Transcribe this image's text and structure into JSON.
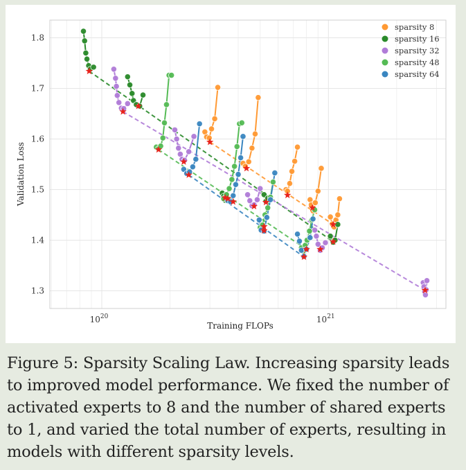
{
  "chart_data": {
    "type": "scatter",
    "xlabel": "Training FLOPs",
    "ylabel": "Validation Loss",
    "xscale": "log",
    "xlim": [
      5.9e+19,
      3.3e+21
    ],
    "ylim": [
      1.265,
      1.835
    ],
    "x_ticks": [
      {
        "value": 1e+20,
        "base": "10",
        "exp": "20"
      },
      {
        "value": 1e+21,
        "base": "10",
        "exp": "21"
      }
    ],
    "y_ticks": [
      {
        "value": 1.3,
        "label": "1.3"
      },
      {
        "value": 1.4,
        "label": "1.4"
      },
      {
        "value": 1.5,
        "label": "1.5"
      },
      {
        "value": 1.6,
        "label": "1.6"
      },
      {
        "value": 1.7,
        "label": "1.7"
      },
      {
        "value": 1.8,
        "label": "1.8"
      }
    ],
    "grid": true,
    "legend_position": "top-right",
    "series": [
      {
        "name": "sparsity 8",
        "color": "#ff9933",
        "groups": [
          {
            "x": [
              2.85e+20,
              2.9e+20,
              2.98e+20,
              3.05e+20,
              3.15e+20,
              3.25e+20
            ],
            "y": [
              1.614,
              1.604,
              1.602,
              1.62,
              1.64,
              1.702
            ]
          },
          {
            "x": [
              4.2e+20,
              4.3e+20,
              4.45e+20,
              4.6e+20,
              4.75e+20,
              4.9e+20
            ],
            "y": [
              1.552,
              1.546,
              1.555,
              1.582,
              1.61,
              1.682
            ]
          },
          {
            "x": [
              6.5e+20,
              6.6e+20,
              6.75e+20,
              6.9e+20,
              7.1e+20,
              7.3e+20
            ],
            "y": [
              1.5,
              1.497,
              1.512,
              1.536,
              1.556,
              1.584
            ]
          },
          {
            "x": [
              8.3e+20,
              8.4e+20,
              8.55e+20,
              8.75e+20,
              9e+20,
              9.3e+20
            ],
            "y": [
              1.48,
              1.47,
              1.458,
              1.474,
              1.497,
              1.542
            ]
          },
          {
            "x": [
              1.02e+21,
              1.04e+21,
              1.06e+21,
              1.08e+21,
              1.1e+21,
              1.12e+21
            ],
            "y": [
              1.446,
              1.432,
              1.426,
              1.44,
              1.45,
              1.482
            ]
          }
        ],
        "optima": [
          [
            3e+20,
            1.594
          ],
          [
            4.35e+20,
            1.542
          ],
          [
            6.6e+20,
            1.489
          ],
          [
            8.5e+20,
            1.464
          ],
          [
            1.05e+21,
            1.431
          ]
        ]
      },
      {
        "name": "sparsity 16",
        "color": "#2a8a2a",
        "groups": [
          {
            "x": [
              8.3e+19,
              8.4e+19,
              8.5e+19,
              8.6e+19,
              8.75e+19,
              8.9e+19,
              9.2e+19
            ],
            "y": [
              1.813,
              1.794,
              1.77,
              1.758,
              1.745,
              1.738,
              1.742
            ]
          },
          {
            "x": [
              1.3e+20,
              1.33e+20,
              1.36e+20,
              1.38e+20,
              1.42e+20,
              1.47e+20,
              1.52e+20
            ],
            "y": [
              1.723,
              1.707,
              1.69,
              1.676,
              1.668,
              1.665,
              1.687
            ]
          },
          {
            "x": [
              3.4e+20,
              3.45e+20,
              3.5e+20,
              3.55e+20
            ],
            "y": [
              1.493,
              1.487,
              1.479,
              1.49
            ]
          },
          {
            "x": [
              5.2e+20,
              5.3e+20,
              5.4e+20
            ],
            "y": [
              1.49,
              1.477,
              1.483
            ]
          },
          {
            "x": [
              1.02e+21,
              1.05e+21,
              1.07e+21,
              1.1e+21
            ],
            "y": [
              1.408,
              1.396,
              1.4,
              1.431
            ]
          }
        ],
        "optima": [
          [
            8.8e+19,
            1.734
          ],
          [
            1.45e+20,
            1.665
          ],
          [
            3.5e+20,
            1.484
          ],
          [
            5.3e+20,
            1.475
          ],
          [
            1.05e+21,
            1.397
          ]
        ]
      },
      {
        "name": "sparsity 32",
        "color": "#b07cd8",
        "groups": [
          {
            "x": [
              1.13e+20,
              1.15e+20,
              1.16e+20,
              1.17e+20,
              1.19e+20,
              1.22e+20,
              1.25e+20,
              1.3e+20
            ],
            "y": [
              1.738,
              1.72,
              1.704,
              1.686,
              1.672,
              1.661,
              1.66,
              1.67
            ]
          },
          {
            "x": [
              2.1e+20,
              2.14e+20,
              2.18e+20,
              2.22e+20,
              2.26e+20,
              2.32e+20,
              2.42e+20,
              2.55e+20
            ],
            "y": [
              1.618,
              1.6,
              1.582,
              1.57,
              1.56,
              1.558,
              1.575,
              1.605
            ]
          },
          {
            "x": [
              4.4e+20,
              4.5e+20,
              4.6e+20,
              4.7e+20,
              4.85e+20,
              5e+20
            ],
            "y": [
              1.49,
              1.478,
              1.468,
              1.47,
              1.48,
              1.502
            ]
          },
          {
            "x": [
              8.7e+20,
              8.85e+20,
              9e+20,
              9.2e+20,
              9.4e+20,
              9.7e+20
            ],
            "y": [
              1.42,
              1.408,
              1.392,
              1.38,
              1.385,
              1.395
            ]
          },
          {
            "x": [
              2.62e+21,
              2.64e+21,
              2.66e+21,
              2.68e+21,
              2.7e+21,
              2.72e+21
            ],
            "y": [
              1.316,
              1.308,
              1.298,
              1.292,
              1.302,
              1.32
            ]
          }
        ],
        "optima": [
          [
            1.24e+20,
            1.654
          ],
          [
            2.3e+20,
            1.555
          ],
          [
            4.7e+20,
            1.467
          ],
          [
            9.2e+20,
            1.382
          ],
          [
            2.67e+21,
            1.301
          ]
        ]
      },
      {
        "name": "sparsity 48",
        "color": "#55bb55",
        "groups": [
          {
            "x": [
              1.74e+20,
              1.78e+20,
              1.82e+20,
              1.86e+20,
              1.89e+20,
              1.93e+20,
              1.98e+20,
              2.03e+20
            ],
            "y": [
              1.584,
              1.581,
              1.586,
              1.602,
              1.632,
              1.668,
              1.726,
              1.726
            ]
          },
          {
            "x": [
              3.45e+20,
              3.55e+20,
              3.65e+20,
              3.75e+20,
              3.85e+20,
              3.95e+20,
              4.05e+20,
              4.15e+20
            ],
            "y": [
              1.482,
              1.49,
              1.502,
              1.52,
              1.546,
              1.585,
              1.63,
              1.632
            ]
          },
          {
            "x": [
              5e+20,
              5.12e+20,
              5.25e+20,
              5.4e+20,
              5.55e+20,
              5.7e+20
            ],
            "y": [
              1.425,
              1.43,
              1.45,
              1.464,
              1.485,
              1.515
            ]
          },
          {
            "x": [
              7.6e+20,
              7.75e+20,
              7.9e+20,
              8.05e+20,
              8.25e+20,
              8.45e+20,
              8.7e+20
            ],
            "y": [
              1.385,
              1.378,
              1.39,
              1.4,
              1.418,
              1.44,
              1.46
            ]
          }
        ],
        "optima": [
          [
            1.78e+20,
            1.579
          ],
          [
            3.6e+20,
            1.482
          ],
          [
            5.2e+20,
            1.427
          ],
          [
            8e+20,
            1.382
          ]
        ]
      },
      {
        "name": "sparsity 64",
        "color": "#3a86c0",
        "groups": [
          {
            "x": [
              2.3e+20,
              2.37e+20,
              2.44e+20,
              2.52e+20,
              2.6e+20,
              2.7e+20
            ],
            "y": [
              1.54,
              1.532,
              1.535,
              1.545,
              1.56,
              1.63
            ]
          },
          {
            "x": [
              3.6e+20,
              3.7e+20,
              3.8e+20,
              3.9e+20,
              4e+20,
              4.1e+20,
              4.2e+20
            ],
            "y": [
              1.478,
              1.476,
              1.488,
              1.51,
              1.53,
              1.563,
              1.605
            ]
          },
          {
            "x": [
              4.95e+20,
              5.05e+20,
              5.2e+20,
              5.35e+20,
              5.55e+20,
              5.8e+20
            ],
            "y": [
              1.44,
              1.42,
              1.418,
              1.445,
              1.48,
              1.533
            ]
          },
          {
            "x": [
              7.3e+20,
              7.45e+20,
              7.6e+20,
              7.8e+20,
              8e+20,
              8.3e+20,
              8.55e+20
            ],
            "y": [
              1.412,
              1.398,
              1.38,
              1.368,
              1.382,
              1.405,
              1.442
            ]
          }
        ],
        "optima": [
          [
            2.42e+20,
            1.529
          ],
          [
            3.8e+20,
            1.476
          ],
          [
            5.2e+20,
            1.419
          ],
          [
            7.8e+20,
            1.367
          ]
        ]
      }
    ]
  },
  "caption": {
    "lines": [
      "Figure 5: Sparsity Scaling Law. Increasing sparsity leads",
      "to improved model performance. We fixed the number of",
      "activated experts to 8 and the number of shared experts",
      "to 1, and varied the total number of experts, resulting in",
      "models with different sparsity levels."
    ]
  }
}
